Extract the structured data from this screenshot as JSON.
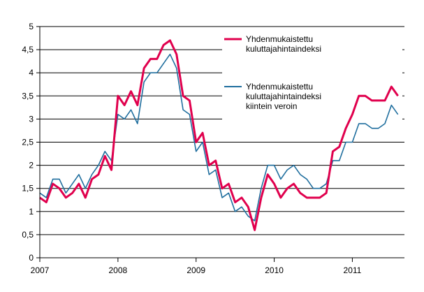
{
  "chart_data": {
    "type": "line",
    "title": "",
    "xlabel": "",
    "ylabel": "",
    "ylim": [
      0,
      5
    ],
    "y_ticks": [
      "0",
      "0,5",
      "1",
      "1,5",
      "2",
      "2,5",
      "3",
      "3,5",
      "4",
      "4,5",
      "5"
    ],
    "y_tick_values": [
      0,
      0.5,
      1,
      1.5,
      2,
      2.5,
      3,
      3.5,
      4,
      4.5,
      5
    ],
    "x_ticks": [
      "2007",
      "2008",
      "2009",
      "2010",
      "2011"
    ],
    "x_tick_months": [
      0,
      12,
      24,
      36,
      48
    ],
    "x_range_months": [
      0,
      56
    ],
    "grid": "horizontal",
    "legend_position": "top-right",
    "series": [
      {
        "name": "Yhdenmukaistettu kuluttajahintaindeksi",
        "legend_lines": [
          "Yhdenmukaistettu",
          "kuluttajahintaindeksi"
        ],
        "color": "#e0004d",
        "values": [
          1.3,
          1.2,
          1.6,
          1.5,
          1.3,
          1.4,
          1.6,
          1.3,
          1.7,
          1.8,
          2.2,
          1.9,
          3.5,
          3.3,
          3.6,
          3.3,
          4.1,
          4.3,
          4.3,
          4.6,
          4.7,
          4.4,
          3.5,
          3.4,
          2.5,
          2.7,
          2.0,
          2.1,
          1.5,
          1.6,
          1.2,
          1.3,
          1.1,
          0.6,
          1.3,
          1.8,
          1.6,
          1.3,
          1.5,
          1.6,
          1.4,
          1.3,
          1.3,
          1.3,
          1.4,
          2.3,
          2.4,
          2.8,
          3.1,
          3.5,
          3.5,
          3.4,
          3.4,
          3.4,
          3.7,
          3.5
        ]
      },
      {
        "name": "Yhdenmukaistettu kuluttajahintaindeksi kiintein veroin",
        "legend_lines": [
          "Yhdenmukaistettu",
          "kuluttajahintaindeksi",
          "kiintein veroin"
        ],
        "color": "#1f6e9e",
        "values": [
          1.4,
          1.3,
          1.7,
          1.7,
          1.4,
          1.6,
          1.8,
          1.5,
          1.8,
          2.0,
          2.3,
          2.1,
          3.1,
          3.0,
          3.2,
          2.9,
          3.8,
          4.0,
          4.0,
          4.2,
          4.4,
          4.1,
          3.2,
          3.1,
          2.3,
          2.5,
          1.8,
          1.9,
          1.3,
          1.4,
          1.0,
          1.1,
          0.9,
          0.8,
          1.5,
          2.0,
          2.0,
          1.7,
          1.9,
          2.0,
          1.8,
          1.7,
          1.5,
          1.5,
          1.6,
          2.1,
          2.1,
          2.5,
          2.5,
          2.9,
          2.9,
          2.8,
          2.8,
          2.9,
          3.3,
          3.1
        ]
      }
    ]
  }
}
